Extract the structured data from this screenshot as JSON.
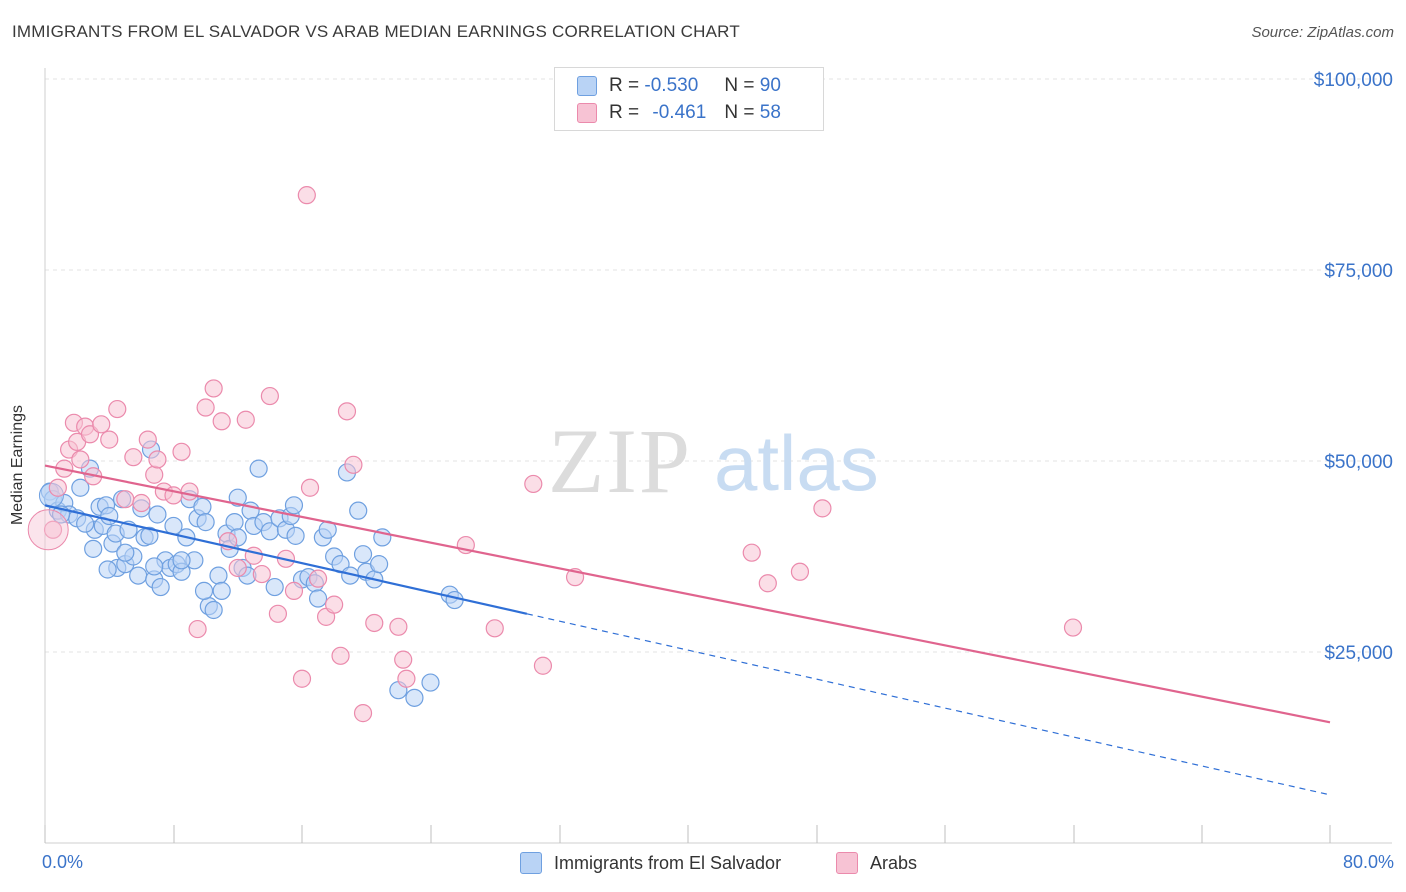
{
  "title": "IMMIGRANTS FROM EL SALVADOR VS ARAB MEDIAN EARNINGS CORRELATION CHART",
  "source": "Source: ZipAtlas.com",
  "watermark": {
    "zip": "ZIP",
    "atlas": "atlas"
  },
  "legend": {
    "r_label": "R =",
    "n_label": "N =",
    "rows": [
      {
        "r": "-0.530",
        "n": "90",
        "color": "#6fa0e0",
        "fill": "#b9d3f5"
      },
      {
        "r": "-0.461",
        "n": "58",
        "color": "#eb8aac",
        "fill": "#f7c3d4"
      }
    ]
  },
  "bottom_legend": [
    {
      "label": "Immigrants from El Salvador"
    },
    {
      "label": "Arabs"
    }
  ],
  "x_labels": {
    "min": "0.0%",
    "max": "80.0%"
  },
  "chart_data": {
    "type": "scatter",
    "title": "IMMIGRANTS FROM EL SALVADOR VS ARAB MEDIAN EARNINGS CORRELATION CHART",
    "xlabel": "",
    "ylabel": "Median Earnings",
    "xlim": [
      0,
      80
    ],
    "ylim": [
      0,
      105000
    ],
    "y_ticks": [
      25000,
      50000,
      75000,
      100000
    ],
    "y_tick_labels": [
      "$25,000",
      "$50,000",
      "$75,000",
      "$100,000"
    ],
    "grid": true,
    "legend_position": "top-center",
    "series": [
      {
        "name": "Immigrants from El Salvador",
        "color": "#6fa0e0",
        "fill": "#b9d3f5",
        "trend_color": "#2f6fd6",
        "trend": {
          "x0": 0,
          "y0": 44200,
          "x1": 30,
          "y1": 30000,
          "dashed_to_x": 80,
          "dashed_to_y": 6300
        },
        "points": [
          [
            0.3,
            46000
          ],
          [
            0.5,
            45000
          ],
          [
            0.8,
            43500
          ],
          [
            1.2,
            44500
          ],
          [
            1.5,
            43000
          ],
          [
            2.0,
            42500
          ],
          [
            2.2,
            46500
          ],
          [
            2.8,
            49000
          ],
          [
            3.0,
            38500
          ],
          [
            3.1,
            41000
          ],
          [
            3.4,
            44000
          ],
          [
            3.6,
            41500
          ],
          [
            3.8,
            44200
          ],
          [
            4.0,
            42800
          ],
          [
            4.2,
            39200
          ],
          [
            4.4,
            40500
          ],
          [
            4.5,
            36000
          ],
          [
            4.8,
            45000
          ],
          [
            5.0,
            36500
          ],
          [
            5.2,
            41000
          ],
          [
            5.5,
            37500
          ],
          [
            5.8,
            35000
          ],
          [
            6.0,
            43800
          ],
          [
            6.2,
            40000
          ],
          [
            6.5,
            40200
          ],
          [
            6.6,
            51500
          ],
          [
            6.8,
            34500
          ],
          [
            7.0,
            43000
          ],
          [
            7.2,
            33500
          ],
          [
            7.5,
            37000
          ],
          [
            7.8,
            36000
          ],
          [
            8.0,
            41500
          ],
          [
            8.2,
            36500
          ],
          [
            8.5,
            35500
          ],
          [
            8.8,
            40000
          ],
          [
            9.0,
            45000
          ],
          [
            9.3,
            37000
          ],
          [
            9.5,
            42500
          ],
          [
            9.8,
            44000
          ],
          [
            10.0,
            42000
          ],
          [
            10.2,
            31000
          ],
          [
            10.5,
            30500
          ],
          [
            10.8,
            35000
          ],
          [
            11.0,
            33000
          ],
          [
            11.3,
            40500
          ],
          [
            11.5,
            38500
          ],
          [
            11.8,
            42000
          ],
          [
            12.0,
            40000
          ],
          [
            12.3,
            36000
          ],
          [
            12.6,
            35000
          ],
          [
            12.8,
            43500
          ],
          [
            13.0,
            41500
          ],
          [
            13.3,
            49000
          ],
          [
            13.6,
            42000
          ],
          [
            14.0,
            40800
          ],
          [
            14.3,
            33500
          ],
          [
            14.6,
            42500
          ],
          [
            15.0,
            41000
          ],
          [
            15.3,
            42800
          ],
          [
            15.6,
            40200
          ],
          [
            16.0,
            34500
          ],
          [
            16.4,
            34800
          ],
          [
            16.8,
            34000
          ],
          [
            17.0,
            32000
          ],
          [
            17.3,
            40000
          ],
          [
            17.6,
            41000
          ],
          [
            18.0,
            37500
          ],
          [
            18.4,
            36500
          ],
          [
            18.8,
            48500
          ],
          [
            19.0,
            35000
          ],
          [
            19.5,
            43500
          ],
          [
            19.8,
            37800
          ],
          [
            20.0,
            35500
          ],
          [
            20.5,
            34500
          ],
          [
            20.8,
            36500
          ],
          [
            21.0,
            40000
          ],
          [
            22.0,
            20000
          ],
          [
            23.0,
            19000
          ],
          [
            24.0,
            21000
          ],
          [
            25.2,
            32500
          ],
          [
            25.5,
            31800
          ],
          [
            8.5,
            37000
          ],
          [
            6.8,
            36200
          ],
          [
            1.0,
            43000
          ],
          [
            12.0,
            45200
          ],
          [
            15.5,
            44200
          ],
          [
            9.9,
            33000
          ],
          [
            2.5,
            41800
          ],
          [
            5.0,
            38000
          ],
          [
            3.9,
            35800
          ]
        ]
      },
      {
        "name": "Arabs",
        "color": "#eb8aac",
        "fill": "#f7c3d4",
        "trend_color": "#e0648e",
        "trend": {
          "x0": 0,
          "y0": 49400,
          "x1": 80,
          "y1": 15800
        },
        "points": [
          [
            0.5,
            41000
          ],
          [
            0.8,
            46500
          ],
          [
            1.2,
            49000
          ],
          [
            1.5,
            51500
          ],
          [
            1.8,
            55000
          ],
          [
            2.0,
            52500
          ],
          [
            2.2,
            50200
          ],
          [
            2.5,
            54500
          ],
          [
            2.8,
            53500
          ],
          [
            3.0,
            48000
          ],
          [
            3.5,
            54800
          ],
          [
            4.0,
            52800
          ],
          [
            4.5,
            56800
          ],
          [
            5.0,
            45000
          ],
          [
            5.5,
            50500
          ],
          [
            6.0,
            44500
          ],
          [
            6.4,
            52800
          ],
          [
            6.8,
            48200
          ],
          [
            7.0,
            50200
          ],
          [
            7.4,
            46000
          ],
          [
            8.0,
            45500
          ],
          [
            8.5,
            51200
          ],
          [
            9.0,
            46000
          ],
          [
            9.5,
            28000
          ],
          [
            10.0,
            57000
          ],
          [
            10.5,
            59500
          ],
          [
            11.0,
            55200
          ],
          [
            11.4,
            39500
          ],
          [
            12.0,
            36000
          ],
          [
            12.5,
            55400
          ],
          [
            13.0,
            37600
          ],
          [
            13.5,
            35200
          ],
          [
            14.0,
            58500
          ],
          [
            14.5,
            30000
          ],
          [
            15.0,
            37200
          ],
          [
            15.5,
            33000
          ],
          [
            16.0,
            21500
          ],
          [
            16.5,
            46500
          ],
          [
            17.0,
            34600
          ],
          [
            17.5,
            29600
          ],
          [
            18.0,
            31200
          ],
          [
            18.4,
            24500
          ],
          [
            18.8,
            56500
          ],
          [
            19.2,
            49500
          ],
          [
            19.8,
            17000
          ],
          [
            20.5,
            28800
          ],
          [
            22.0,
            28300
          ],
          [
            22.3,
            24000
          ],
          [
            26.2,
            39000
          ],
          [
            28.0,
            28100
          ],
          [
            30.4,
            47000
          ],
          [
            31.0,
            23200
          ],
          [
            33.0,
            34800
          ],
          [
            44.0,
            38000
          ],
          [
            45.0,
            34000
          ],
          [
            47.0,
            35500
          ],
          [
            48.4,
            43800
          ],
          [
            64.0,
            28200
          ],
          [
            16.3,
            84800
          ],
          [
            22.5,
            21500
          ]
        ]
      }
    ]
  }
}
